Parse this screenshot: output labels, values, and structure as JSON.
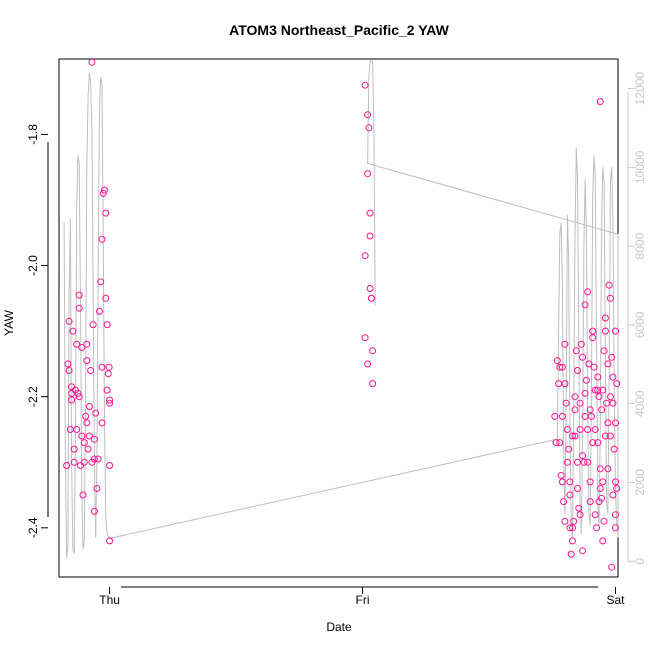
{
  "chart_data": {
    "type": "scatter",
    "title": "ATOM3 Northeast_Pacific_2 YAW",
    "xlabel": "Date",
    "ylabel": "YAW",
    "x_ticks": [
      "Thu",
      "Fri",
      "Sat"
    ],
    "xlim": [
      -0.2,
      2.01
    ],
    "ylim": [
      -2.475,
      -1.685
    ],
    "y_ticks": [
      -2.4,
      -2.2,
      -2.0,
      -1.8
    ],
    "y_tick_labels": [
      "-2.4",
      "-2.2",
      "-2.0",
      "-1.8"
    ],
    "y2lim": [
      -400,
      12750
    ],
    "y2_ticks": [
      0,
      2000,
      4000,
      6000,
      8000,
      10000,
      12000
    ],
    "y2_tick_labels": [
      "0",
      "2000",
      "4000",
      "6000",
      "8000",
      "10000",
      "12000"
    ],
    "colors": {
      "points": "#ff1493",
      "line": "#bebebe",
      "axis": "#000000",
      "right_axis": "#c8c8c8"
    },
    "series": [
      {
        "points": [
          [
            -0.17,
            -2.305
          ],
          [
            -0.165,
            -2.15
          ],
          [
            -0.16,
            -2.085
          ],
          [
            -0.16,
            -2.16
          ],
          [
            -0.155,
            -2.25
          ],
          [
            -0.15,
            -2.185
          ],
          [
            -0.15,
            -2.205
          ],
          [
            -0.145,
            -2.1
          ],
          [
            -0.14,
            -2.28
          ],
          [
            -0.14,
            -2.3
          ],
          [
            -0.135,
            -2.19
          ],
          [
            -0.13,
            -2.25
          ],
          [
            -0.13,
            -2.12
          ],
          [
            -0.125,
            -2.195
          ],
          [
            -0.12,
            -2.045
          ],
          [
            -0.12,
            -2.065
          ],
          [
            -0.115,
            -2.305
          ],
          [
            -0.11,
            -2.26
          ],
          [
            -0.11,
            -2.125
          ],
          [
            -0.105,
            -2.35
          ],
          [
            -0.1,
            -2.3
          ],
          [
            -0.1,
            -2.27
          ],
          [
            -0.095,
            -2.23
          ],
          [
            -0.09,
            -2.12
          ],
          [
            -0.09,
            -2.145
          ],
          [
            -0.085,
            -2.28
          ],
          [
            -0.08,
            -2.215
          ],
          [
            -0.08,
            -2.26
          ],
          [
            -0.075,
            -2.16
          ],
          [
            -0.07,
            -2.3
          ],
          [
            -0.07,
            -1.69
          ],
          [
            -0.065,
            -2.09
          ],
          [
            -0.06,
            -2.265
          ],
          [
            -0.06,
            -2.375
          ],
          [
            -0.055,
            -2.225
          ],
          [
            -0.05,
            -2.34
          ],
          [
            -0.045,
            -2.295
          ],
          [
            -0.04,
            -2.07
          ],
          [
            -0.035,
            -2.025
          ],
          [
            -0.03,
            -1.96
          ],
          [
            -0.03,
            -2.24
          ],
          [
            -0.025,
            -1.89
          ],
          [
            -0.02,
            -1.885
          ],
          [
            -0.015,
            -1.92
          ],
          [
            -0.015,
            -2.05
          ],
          [
            -0.01,
            -2.09
          ],
          [
            -0.01,
            -2.19
          ],
          [
            -0.005,
            -2.165
          ],
          [
            0.0,
            -2.205
          ],
          [
            0.0,
            -2.21
          ],
          [
            0.0,
            -2.305
          ],
          [
            0.0,
            -2.42
          ],
          [
            -0.002,
            -2.155
          ],
          [
            -0.15,
            -2.195
          ],
          [
            -0.12,
            -2.2
          ],
          [
            -0.09,
            -2.24
          ],
          [
            -0.06,
            -2.295
          ],
          [
            -0.03,
            -2.155
          ],
          [
            1.01,
            -1.725
          ],
          [
            1.01,
            -1.985
          ],
          [
            1.01,
            -2.11
          ],
          [
            1.02,
            -1.77
          ],
          [
            1.02,
            -1.86
          ],
          [
            1.02,
            -2.15
          ],
          [
            1.025,
            -1.79
          ],
          [
            1.03,
            -1.92
          ],
          [
            1.03,
            -1.955
          ],
          [
            1.03,
            -2.035
          ],
          [
            1.035,
            -2.05
          ],
          [
            1.035,
            -2.05
          ],
          [
            1.04,
            -2.13
          ],
          [
            1.04,
            -2.18
          ],
          [
            1.78,
            -2.27
          ],
          [
            1.79,
            -2.23
          ],
          [
            1.79,
            -2.155
          ],
          [
            1.8,
            -2.12
          ],
          [
            1.8,
            -2.18
          ],
          [
            1.805,
            -2.21
          ],
          [
            1.81,
            -2.25
          ],
          [
            1.815,
            -2.28
          ],
          [
            1.82,
            -2.33
          ],
          [
            1.82,
            -2.35
          ],
          [
            1.825,
            -2.44
          ],
          [
            1.83,
            -2.42
          ],
          [
            1.83,
            -2.4
          ],
          [
            1.835,
            -2.39
          ],
          [
            1.84,
            -2.2
          ],
          [
            1.84,
            -2.26
          ],
          [
            1.845,
            -2.13
          ],
          [
            1.85,
            -2.3
          ],
          [
            1.85,
            -2.16
          ],
          [
            1.855,
            -2.37
          ],
          [
            1.86,
            -2.38
          ],
          [
            1.86,
            -2.25
          ],
          [
            1.865,
            -2.12
          ],
          [
            1.87,
            -2.435
          ],
          [
            1.87,
            -2.29
          ],
          [
            1.875,
            -2.3
          ],
          [
            1.88,
            -2.195
          ],
          [
            1.88,
            -2.06
          ],
          [
            1.885,
            -2.175
          ],
          [
            1.89,
            -2.04
          ],
          [
            1.89,
            -2.25
          ],
          [
            1.895,
            -2.15
          ],
          [
            1.9,
            -2.33
          ],
          [
            1.9,
            -2.36
          ],
          [
            1.905,
            -2.23
          ],
          [
            1.91,
            -2.1
          ],
          [
            1.91,
            -2.11
          ],
          [
            1.915,
            -2.155
          ],
          [
            1.92,
            -2.25
          ],
          [
            1.92,
            -2.38
          ],
          [
            1.925,
            -2.4
          ],
          [
            1.93,
            -2.19
          ],
          [
            1.93,
            -2.27
          ],
          [
            1.935,
            -2.2
          ],
          [
            1.94,
            -1.75
          ],
          [
            1.94,
            -2.31
          ],
          [
            1.945,
            -2.22
          ],
          [
            1.95,
            -2.33
          ],
          [
            1.95,
            -2.42
          ],
          [
            1.955,
            -2.13
          ],
          [
            1.96,
            -2.08
          ],
          [
            1.96,
            -2.26
          ],
          [
            1.965,
            -2.21
          ],
          [
            1.97,
            -2.31
          ],
          [
            1.97,
            -2.24
          ],
          [
            1.975,
            -2.03
          ],
          [
            1.98,
            -2.05
          ],
          [
            1.98,
            -2.26
          ],
          [
            1.985,
            -2.14
          ],
          [
            1.985,
            -2.46
          ],
          [
            1.99,
            -2.17
          ],
          [
            1.99,
            -2.35
          ],
          [
            1.995,
            -2.28
          ],
          [
            2.0,
            -2.24
          ],
          [
            2.0,
            -2.1
          ],
          [
            2.0,
            -2.4
          ],
          [
            2.005,
            -2.18
          ],
          [
            2.005,
            -2.34
          ],
          [
            1.76,
            -2.23
          ],
          [
            1.765,
            -2.27
          ],
          [
            1.77,
            -2.145
          ],
          [
            1.775,
            -2.18
          ],
          [
            1.78,
            -2.155
          ],
          [
            1.785,
            -2.32
          ],
          [
            1.79,
            -2.33
          ],
          [
            1.795,
            -2.36
          ],
          [
            1.8,
            -2.39
          ],
          [
            1.81,
            -2.3
          ],
          [
            1.82,
            -2.4
          ],
          [
            1.83,
            -2.26
          ],
          [
            1.84,
            -2.22
          ],
          [
            1.85,
            -2.34
          ],
          [
            1.86,
            -2.21
          ],
          [
            1.87,
            -2.14
          ],
          [
            1.88,
            -2.23
          ],
          [
            1.89,
            -2.3
          ],
          [
            1.9,
            -2.22
          ],
          [
            1.91,
            -2.27
          ],
          [
            1.92,
            -2.19
          ],
          [
            1.93,
            -2.17
          ],
          [
            1.94,
            -2.34
          ],
          [
            1.95,
            -2.19
          ],
          [
            1.96,
            -2.1
          ],
          [
            1.97,
            -2.15
          ],
          [
            1.98,
            -2.2
          ],
          [
            1.99,
            -2.21
          ],
          [
            2.0,
            -2.33
          ],
          [
            2.0,
            -2.38
          ],
          [
            1.935,
            -2.36
          ],
          [
            1.945,
            -2.355
          ],
          [
            1.955,
            -2.39
          ]
        ]
      },
      {
        "line": [
          [
            -0.18,
            8600
          ],
          [
            -0.175,
            2800
          ],
          [
            -0.17,
            100
          ],
          [
            -0.165,
            400
          ],
          [
            -0.16,
            6800
          ],
          [
            -0.155,
            8700
          ],
          [
            -0.15,
            2500
          ],
          [
            -0.145,
            300
          ],
          [
            -0.14,
            200
          ],
          [
            -0.135,
            3000
          ],
          [
            -0.13,
            9000
          ],
          [
            -0.125,
            10300
          ],
          [
            -0.12,
            10100
          ],
          [
            -0.115,
            6500
          ],
          [
            -0.11,
            1800
          ],
          [
            -0.105,
            300
          ],
          [
            -0.1,
            500
          ],
          [
            -0.095,
            4200
          ],
          [
            -0.09,
            10000
          ],
          [
            -0.085,
            11800
          ],
          [
            -0.08,
            12400
          ],
          [
            -0.075,
            12200
          ],
          [
            -0.07,
            11000
          ],
          [
            -0.065,
            7000
          ],
          [
            -0.06,
            2500
          ],
          [
            -0.055,
            600
          ],
          [
            -0.05,
            2500
          ],
          [
            -0.045,
            7500
          ],
          [
            -0.04,
            11500
          ],
          [
            -0.035,
            12300
          ],
          [
            -0.03,
            12100
          ],
          [
            -0.025,
            8000
          ],
          [
            -0.02,
            3500
          ],
          [
            -0.015,
            1100
          ],
          [
            -0.01,
            700
          ],
          [
            0.0,
            580
          ],
          [
            0.0,
            580
          ],
          [
            1.77,
            3100
          ],
          [
            1.78,
            8300
          ],
          [
            1.785,
            8600
          ],
          [
            1.79,
            7000
          ],
          [
            1.795,
            2800
          ],
          [
            1.8,
            1200
          ],
          [
            1.805,
            3800
          ],
          [
            1.81,
            8800
          ],
          [
            1.815,
            7600
          ],
          [
            1.82,
            3500
          ],
          [
            1.825,
            900
          ],
          [
            1.83,
            600
          ],
          [
            1.835,
            3500
          ],
          [
            1.84,
            8200
          ],
          [
            1.845,
            10500
          ],
          [
            1.85,
            9700
          ],
          [
            1.855,
            5500
          ],
          [
            1.86,
            1500
          ],
          [
            1.865,
            700
          ],
          [
            1.87,
            3200
          ],
          [
            1.875,
            8000
          ],
          [
            1.88,
            9700
          ],
          [
            1.885,
            8400
          ],
          [
            1.89,
            4000
          ],
          [
            1.895,
            1200
          ],
          [
            1.9,
            900
          ],
          [
            1.905,
            4200
          ],
          [
            1.91,
            9300
          ],
          [
            1.915,
            10300
          ],
          [
            1.92,
            9800
          ],
          [
            1.925,
            5600
          ],
          [
            1.93,
            1400
          ],
          [
            1.935,
            900
          ],
          [
            1.94,
            3500
          ],
          [
            1.945,
            8600
          ],
          [
            1.95,
            10000
          ],
          [
            1.955,
            9600
          ],
          [
            1.96,
            5000
          ],
          [
            1.965,
            1500
          ],
          [
            1.97,
            1200
          ],
          [
            1.975,
            4500
          ],
          [
            1.98,
            9600
          ],
          [
            1.985,
            10000
          ],
          [
            1.99,
            8600
          ],
          [
            1.995,
            4400
          ],
          [
            2.0,
            1800
          ],
          [
            2.005,
            1000
          ],
          [
            2.01,
            600
          ],
          [
            2.01,
            8300
          ],
          [
            1.02,
            10100
          ],
          [
            1.02,
            10100
          ],
          [
            1.025,
            12300
          ],
          [
            1.03,
            12700
          ],
          [
            1.04,
            12700
          ],
          [
            1.045,
            11000
          ],
          [
            1.05,
            6500
          ]
        ]
      }
    ]
  }
}
